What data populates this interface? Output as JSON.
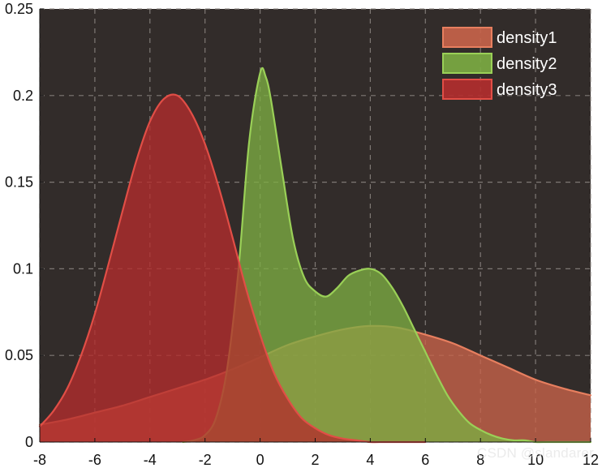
{
  "chart_data": {
    "type": "area",
    "x_ticks": [
      -8,
      -6,
      -4,
      -2,
      0,
      2,
      4,
      6,
      8,
      10,
      12
    ],
    "y_ticks": [
      0,
      0.05,
      0.1,
      0.15,
      0.2,
      0.25
    ],
    "y_tick_labels": [
      "0",
      "0.05",
      "0.1",
      "0.15",
      "0.2",
      "0.25"
    ],
    "xlim": [
      -8,
      12
    ],
    "ylim": [
      0,
      0.25
    ],
    "grid": true,
    "legend_position": "top-right",
    "colors": {
      "plot_background": "#322c2a",
      "grid": "#8c8682",
      "axis_text": "#111111",
      "legend_text": "#ffffff",
      "watermark": "#e6e6e6"
    },
    "series": [
      {
        "name": "density1",
        "fill": "#c9644a",
        "stroke": "#e77f5f",
        "fill_opacity": 0.78,
        "x": [
          -8,
          -7,
          -6,
          -5,
          -4,
          -3,
          -2,
          -1,
          0,
          1,
          2,
          3,
          4,
          5,
          6,
          7,
          8,
          9,
          10,
          11,
          12
        ],
        "y": [
          0.01,
          0.013,
          0.017,
          0.021,
          0.026,
          0.031,
          0.036,
          0.042,
          0.049,
          0.056,
          0.061,
          0.065,
          0.067,
          0.066,
          0.062,
          0.057,
          0.05,
          0.043,
          0.036,
          0.031,
          0.027
        ]
      },
      {
        "name": "density2",
        "fill": "#7cad42",
        "stroke": "#9ad057",
        "fill_opacity": 0.78,
        "x": [
          -2.8,
          -2.4,
          -2,
          -1.6,
          -1.2,
          -0.8,
          -0.4,
          0,
          0.2,
          0.4,
          0.8,
          1.2,
          1.6,
          2,
          2.4,
          2.8,
          3.2,
          3.6,
          4,
          4.4,
          4.8,
          5.2,
          5.6,
          6,
          6.4,
          6.8,
          7.2,
          7.6,
          8,
          8.4,
          8.8,
          9.2,
          9.6,
          10,
          10.4,
          10.8,
          11.2,
          11.6,
          12
        ],
        "y": [
          0,
          0.001,
          0.004,
          0.014,
          0.042,
          0.097,
          0.173,
          0.213,
          0.211,
          0.197,
          0.156,
          0.117,
          0.095,
          0.087,
          0.084,
          0.089,
          0.096,
          0.099,
          0.1,
          0.097,
          0.089,
          0.078,
          0.065,
          0.052,
          0.039,
          0.027,
          0.018,
          0.011,
          0.007,
          0.004,
          0.002,
          0.001,
          0.001,
          0,
          0,
          0,
          0,
          0,
          0
        ]
      },
      {
        "name": "density3",
        "fill": "#b42d2d",
        "stroke": "#e14e46",
        "fill_opacity": 0.78,
        "x": [
          -8,
          -7.5,
          -7,
          -6.5,
          -6,
          -5.5,
          -5,
          -4.5,
          -4,
          -3.5,
          -3,
          -2.5,
          -2,
          -1.5,
          -1,
          -0.5,
          0,
          0.5,
          1,
          1.5,
          2,
          2.5,
          3,
          3.5,
          4,
          4.5,
          5,
          5.5,
          6
        ],
        "y": [
          0.009,
          0.018,
          0.031,
          0.05,
          0.074,
          0.103,
          0.133,
          0.162,
          0.185,
          0.198,
          0.2,
          0.19,
          0.172,
          0.147,
          0.118,
          0.088,
          0.062,
          0.04,
          0.025,
          0.014,
          0.008,
          0.004,
          0.002,
          0.001,
          0,
          0,
          0,
          0,
          0
        ]
      }
    ]
  },
  "watermark": {
    "text": "CSDN @slandarer"
  }
}
